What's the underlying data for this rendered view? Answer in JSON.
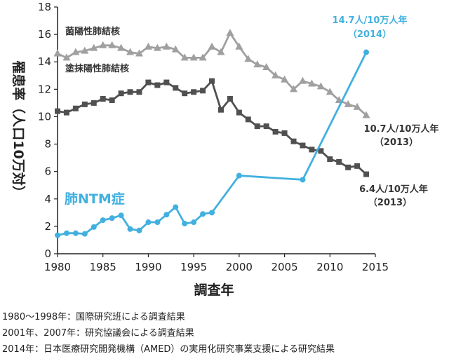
{
  "chart_data": {
    "type": "line",
    "xlabel": "調査年",
    "ylabel": "罹患率（人口10万対）",
    "xlim": [
      1980,
      2015
    ],
    "ylim": [
      0,
      18
    ],
    "x_ticks": [
      "1980",
      "1985",
      "1990",
      "1995",
      "2000",
      "2005",
      "2010",
      "2015"
    ],
    "y_ticks": [
      "0",
      "2",
      "4",
      "6",
      "8",
      "10",
      "12",
      "14",
      "16",
      "18"
    ],
    "colors": {
      "culture_positive": "#a0a0a0",
      "smear_positive": "#505050",
      "ntm": "#41b0df"
    },
    "series": [
      {
        "name": "菌陽性肺結核",
        "marker": "triangle",
        "points": [
          [
            1980,
            14.6
          ],
          [
            1981,
            14.3
          ],
          [
            1982,
            14.7
          ],
          [
            1983,
            14.8
          ],
          [
            1984,
            15.0
          ],
          [
            1985,
            15.2
          ],
          [
            1986,
            15.2
          ],
          [
            1987,
            15.0
          ],
          [
            1988,
            14.7
          ],
          [
            1989,
            14.6
          ],
          [
            1990,
            15.1
          ],
          [
            1991,
            15.0
          ],
          [
            1992,
            15.1
          ],
          [
            1993,
            14.9
          ],
          [
            1994,
            14.3
          ],
          [
            1995,
            14.3
          ],
          [
            1996,
            14.3
          ],
          [
            1997,
            15.1
          ],
          [
            1998,
            14.7
          ],
          [
            1999,
            16.1
          ],
          [
            2000,
            15.1
          ],
          [
            2001,
            14.2
          ],
          [
            2002,
            13.8
          ],
          [
            2003,
            13.6
          ],
          [
            2004,
            13.0
          ],
          [
            2005,
            12.7
          ],
          [
            2006,
            12.0
          ],
          [
            2007,
            12.6
          ],
          [
            2008,
            12.4
          ],
          [
            2009,
            12.2
          ],
          [
            2010,
            11.8
          ],
          [
            2011,
            11.2
          ],
          [
            2012,
            10.9
          ],
          [
            2013,
            10.7
          ],
          [
            2014,
            10.1
          ]
        ]
      },
      {
        "name": "塗抹陽性肺結核",
        "marker": "square",
        "points": [
          [
            1980,
            10.4
          ],
          [
            1981,
            10.3
          ],
          [
            1982,
            10.6
          ],
          [
            1983,
            10.9
          ],
          [
            1984,
            11.0
          ],
          [
            1985,
            11.3
          ],
          [
            1986,
            11.2
          ],
          [
            1987,
            11.7
          ],
          [
            1988,
            11.8
          ],
          [
            1989,
            11.8
          ],
          [
            1990,
            12.5
          ],
          [
            1991,
            12.3
          ],
          [
            1992,
            12.5
          ],
          [
            1993,
            12.1
          ],
          [
            1994,
            11.7
          ],
          [
            1995,
            11.8
          ],
          [
            1996,
            11.9
          ],
          [
            1997,
            12.6
          ],
          [
            1998,
            10.5
          ],
          [
            1999,
            11.3
          ],
          [
            2000,
            10.3
          ],
          [
            2001,
            9.8
          ],
          [
            2002,
            9.3
          ],
          [
            2003,
            9.3
          ],
          [
            2004,
            8.9
          ],
          [
            2005,
            8.8
          ],
          [
            2006,
            8.2
          ],
          [
            2007,
            7.9
          ],
          [
            2008,
            7.6
          ],
          [
            2009,
            7.5
          ],
          [
            2010,
            6.9
          ],
          [
            2011,
            6.7
          ],
          [
            2012,
            6.3
          ],
          [
            2013,
            6.4
          ],
          [
            2014,
            5.8
          ]
        ]
      },
      {
        "name": "肺NTM症",
        "marker": "circle",
        "points": [
          [
            1980,
            1.35
          ],
          [
            1981,
            1.5
          ],
          [
            1982,
            1.5
          ],
          [
            1983,
            1.45
          ],
          [
            1984,
            1.95
          ],
          [
            1985,
            2.45
          ],
          [
            1986,
            2.6
          ],
          [
            1987,
            2.8
          ],
          [
            1988,
            1.8
          ],
          [
            1989,
            1.7
          ],
          [
            1990,
            2.3
          ],
          [
            1991,
            2.3
          ],
          [
            1992,
            2.85
          ],
          [
            1993,
            3.4
          ],
          [
            1994,
            2.2
          ],
          [
            1995,
            2.3
          ],
          [
            1996,
            2.9
          ],
          [
            1997,
            3.0
          ],
          [
            2000,
            5.7
          ],
          [
            2007,
            5.4
          ],
          [
            2014,
            14.7
          ]
        ]
      }
    ],
    "annotations": {
      "ntm_2014": {
        "line1": "14.7人/10万人年",
        "line2": "（2014）"
      },
      "culture_2013": {
        "line1": "10.7人/10万人年",
        "line2": "（2013）"
      },
      "smear_2013": {
        "line1": "6.4人/10万人年",
        "line2": "（2013）"
      }
    }
  },
  "footnotes": [
    "1980〜1998年：国際研究班による調査結果",
    "2001年、2007年：研究協議会による調査結果",
    "2014年：日本医療研究開発機構（AMED）の実用化研究事業支援による研究結果"
  ]
}
